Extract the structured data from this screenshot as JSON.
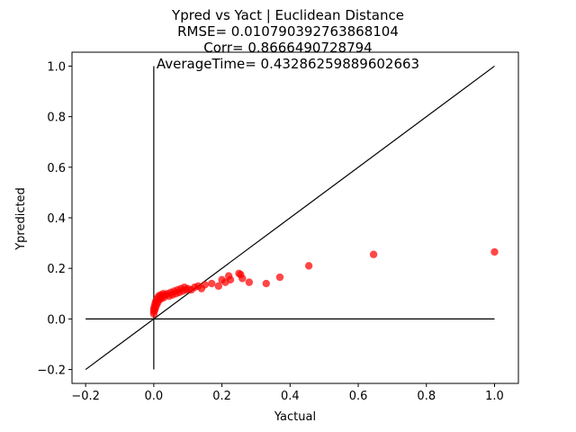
{
  "chart_data": {
    "type": "scatter",
    "title_lines": [
      "Ypred vs Yact | Euclidean Distance",
      "RMSE= 0.010790392763868104",
      "Corr= 0.8666490728794",
      "AverageTime= 0.43286259889602663"
    ],
    "xlabel": "Yactual",
    "ylabel": "Ypredicted",
    "xlim": [
      -0.24,
      1.07
    ],
    "ylim": [
      -0.255,
      1.055
    ],
    "xticks": [
      -0.2,
      0.0,
      0.2,
      0.4,
      0.6,
      0.8,
      1.0
    ],
    "yticks": [
      -0.2,
      0.0,
      0.2,
      0.4,
      0.6,
      0.8,
      1.0
    ],
    "xtick_labels": [
      "−0.2",
      "0.0",
      "0.2",
      "0.4",
      "0.6",
      "0.8",
      "1.0"
    ],
    "ytick_labels": [
      "−0.2",
      "0.0",
      "0.2",
      "0.4",
      "0.6",
      "0.8",
      "1.0"
    ],
    "grid": false,
    "point_color": "#ff0000",
    "line_color": "#000000",
    "reference_lines": [
      {
        "name": "identity-line",
        "x": [
          -0.2,
          1.0
        ],
        "y": [
          -0.2,
          1.0
        ]
      },
      {
        "name": "horizontal-zero-line",
        "x": [
          -0.2,
          1.0
        ],
        "y": [
          0.0,
          0.0
        ]
      },
      {
        "name": "vertical-zero-line",
        "x": [
          0.0,
          0.0
        ],
        "y": [
          -0.2,
          1.0
        ]
      }
    ],
    "points": [
      {
        "x": 0.0,
        "y": 0.02
      },
      {
        "x": 0.0,
        "y": 0.03
      },
      {
        "x": 0.0,
        "y": 0.04
      },
      {
        "x": 0.002,
        "y": 0.05
      },
      {
        "x": 0.003,
        "y": 0.035
      },
      {
        "x": 0.004,
        "y": 0.06
      },
      {
        "x": 0.005,
        "y": 0.045
      },
      {
        "x": 0.006,
        "y": 0.07
      },
      {
        "x": 0.008,
        "y": 0.055
      },
      {
        "x": 0.01,
        "y": 0.08
      },
      {
        "x": 0.012,
        "y": 0.065
      },
      {
        "x": 0.014,
        "y": 0.09
      },
      {
        "x": 0.015,
        "y": 0.075
      },
      {
        "x": 0.018,
        "y": 0.085
      },
      {
        "x": 0.02,
        "y": 0.095
      },
      {
        "x": 0.022,
        "y": 0.08
      },
      {
        "x": 0.025,
        "y": 0.09
      },
      {
        "x": 0.028,
        "y": 0.1
      },
      {
        "x": 0.03,
        "y": 0.085
      },
      {
        "x": 0.035,
        "y": 0.095
      },
      {
        "x": 0.04,
        "y": 0.1
      },
      {
        "x": 0.045,
        "y": 0.09
      },
      {
        "x": 0.05,
        "y": 0.105
      },
      {
        "x": 0.055,
        "y": 0.095
      },
      {
        "x": 0.06,
        "y": 0.11
      },
      {
        "x": 0.065,
        "y": 0.1
      },
      {
        "x": 0.07,
        "y": 0.115
      },
      {
        "x": 0.075,
        "y": 0.105
      },
      {
        "x": 0.08,
        "y": 0.12
      },
      {
        "x": 0.085,
        "y": 0.11
      },
      {
        "x": 0.09,
        "y": 0.125
      },
      {
        "x": 0.095,
        "y": 0.115
      },
      {
        "x": 0.1,
        "y": 0.12
      },
      {
        "x": 0.11,
        "y": 0.115
      },
      {
        "x": 0.12,
        "y": 0.125
      },
      {
        "x": 0.13,
        "y": 0.13
      },
      {
        "x": 0.14,
        "y": 0.12
      },
      {
        "x": 0.15,
        "y": 0.135
      },
      {
        "x": 0.17,
        "y": 0.14
      },
      {
        "x": 0.19,
        "y": 0.13
      },
      {
        "x": 0.2,
        "y": 0.155
      },
      {
        "x": 0.21,
        "y": 0.145
      },
      {
        "x": 0.22,
        "y": 0.17
      },
      {
        "x": 0.225,
        "y": 0.155
      },
      {
        "x": 0.25,
        "y": 0.18
      },
      {
        "x": 0.255,
        "y": 0.175
      },
      {
        "x": 0.26,
        "y": 0.16
      },
      {
        "x": 0.28,
        "y": 0.145
      },
      {
        "x": 0.33,
        "y": 0.14
      },
      {
        "x": 0.37,
        "y": 0.165
      },
      {
        "x": 0.455,
        "y": 0.21
      },
      {
        "x": 0.645,
        "y": 0.255
      },
      {
        "x": 1.0,
        "y": 0.265
      }
    ]
  }
}
